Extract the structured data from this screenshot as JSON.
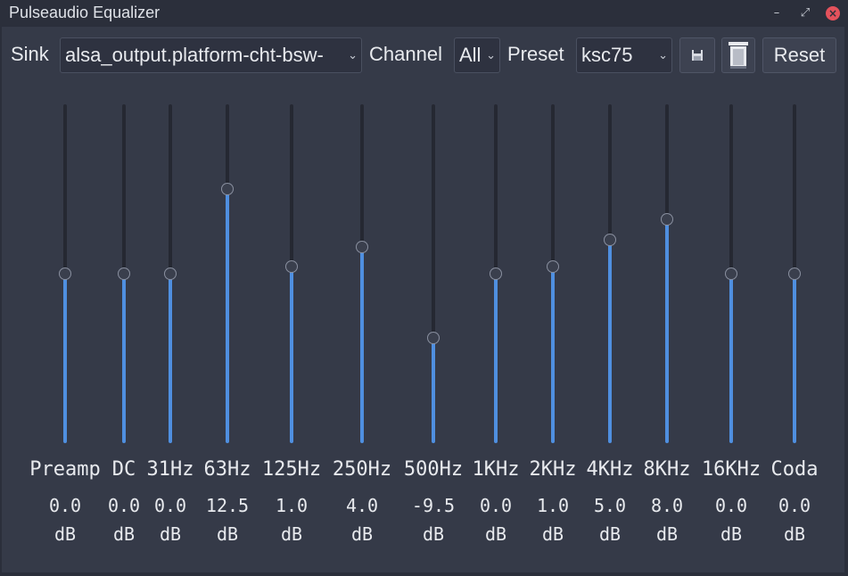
{
  "window": {
    "title": "Pulseaudio Equalizer",
    "minimize_glyph": "–",
    "restore_glyph": "⤢",
    "close_glyph": "×"
  },
  "toolbar": {
    "sink_label": "Sink",
    "sink_value": "alsa_output.platform-cht-bsw-",
    "channel_label": "Channel",
    "channel_value": "All",
    "preset_label": "Preset",
    "preset_value": "ksc75",
    "save_icon": "save-icon",
    "delete_icon": "trash-icon",
    "reset_label": "Reset"
  },
  "equalizer": {
    "range_db": [
      -25,
      25
    ],
    "unit": "dB",
    "bands": [
      {
        "name": "Preamp",
        "value": "0.0",
        "db": 0.0
      },
      {
        "name": "DC",
        "value": "0.0",
        "db": 0.0
      },
      {
        "name": "31Hz",
        "value": "0.0",
        "db": 0.0
      },
      {
        "name": "63Hz",
        "value": "12.5",
        "db": 12.5
      },
      {
        "name": "125Hz",
        "value": "1.0",
        "db": 1.0
      },
      {
        "name": "250Hz",
        "value": "4.0",
        "db": 4.0
      },
      {
        "name": "500Hz",
        "value": "-9.5",
        "db": -9.5
      },
      {
        "name": "1KHz",
        "value": "0.0",
        "db": 0.0
      },
      {
        "name": "2KHz",
        "value": "1.0",
        "db": 1.0
      },
      {
        "name": "4KHz",
        "value": "5.0",
        "db": 5.0
      },
      {
        "name": "8KHz",
        "value": "8.0",
        "db": 8.0
      },
      {
        "name": "16KHz",
        "value": "0.0",
        "db": 0.0
      },
      {
        "name": "Coda",
        "value": "0.0",
        "db": 0.0
      }
    ]
  }
}
